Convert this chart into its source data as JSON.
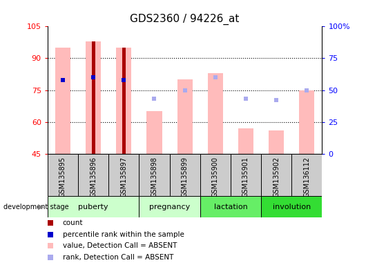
{
  "title": "GDS2360 / 94226_at",
  "samples": [
    "GSM135895",
    "GSM135896",
    "GSM135897",
    "GSM135898",
    "GSM135899",
    "GSM135900",
    "GSM135901",
    "GSM135902",
    "GSM136112"
  ],
  "value_absent": [
    95,
    98,
    95,
    65,
    80,
    83,
    57,
    56,
    75
  ],
  "rank_absent_pct": [
    58,
    60,
    58,
    43,
    50,
    60,
    43,
    42,
    50
  ],
  "count_values": [
    null,
    98,
    95,
    null,
    null,
    null,
    null,
    null,
    null
  ],
  "count_bars": [
    false,
    true,
    true,
    false,
    false,
    false,
    false,
    false,
    false
  ],
  "percentile_rank_pct": [
    58,
    60,
    58,
    null,
    null,
    null,
    null,
    null,
    null
  ],
  "has_percentile": [
    true,
    true,
    true,
    false,
    false,
    false,
    false,
    false,
    false
  ],
  "ylim_left": [
    45,
    105
  ],
  "ylim_right": [
    0,
    100
  ],
  "yticks_left": [
    45,
    60,
    75,
    90,
    105
  ],
  "ytick_labels_left": [
    "45",
    "60",
    "75",
    "90",
    "105"
  ],
  "yticks_right": [
    0,
    25,
    50,
    75,
    100
  ],
  "ytick_labels_right": [
    "0",
    "25",
    "50",
    "75",
    "100%"
  ],
  "stage_groups": [
    {
      "label": "puberty",
      "start": 0,
      "end": 2,
      "color": "#ccffcc"
    },
    {
      "label": "pregnancy",
      "start": 3,
      "end": 4,
      "color": "#ccffcc"
    },
    {
      "label": "lactation",
      "start": 5,
      "end": 6,
      "color": "#66ee66"
    },
    {
      "label": "involution",
      "start": 7,
      "end": 8,
      "color": "#33dd33"
    }
  ],
  "bar_color_present": "#aa0000",
  "bar_color_absent_value": "#ffbbbb",
  "dot_color_percentile": "#0000cc",
  "dot_color_rank_absent": "#aaaaee",
  "background_color": "#ffffff",
  "legend_items": [
    {
      "color": "#aa0000",
      "label": "count"
    },
    {
      "color": "#0000cc",
      "label": "percentile rank within the sample"
    },
    {
      "color": "#ffbbbb",
      "label": "value, Detection Call = ABSENT"
    },
    {
      "color": "#aaaaee",
      "label": "rank, Detection Call = ABSENT"
    }
  ]
}
